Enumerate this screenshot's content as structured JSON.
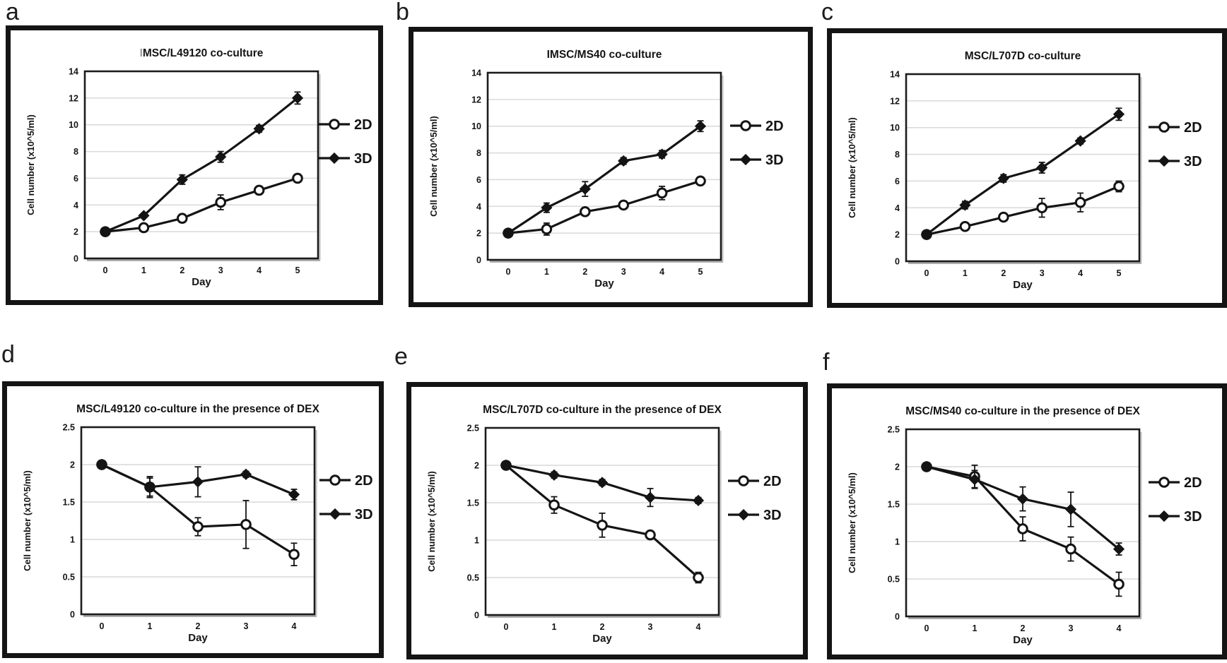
{
  "figure": {
    "colors": {
      "line": "#141414",
      "grid": "#d9d9d9",
      "plot_border": "#1c1c1c",
      "plot_shadow": "#a6a6a6",
      "frame": "#141414",
      "background": "#ffffff",
      "faint_title_prefix": "#9a9a9a"
    },
    "legend_labels": [
      "2D",
      "3D"
    ]
  },
  "chart_data": [
    {
      "panel_label": "a",
      "type": "line",
      "title": "MSC/L49120 co-culture",
      "title_prefix_faint": "I",
      "xlabel": "Day",
      "ylabel": "Cell number (x10^5/ml)",
      "x": [
        0,
        1,
        2,
        3,
        4,
        5
      ],
      "ylim": [
        0,
        14
      ],
      "yticks": [
        0,
        2,
        4,
        6,
        8,
        10,
        12,
        14
      ],
      "ytick_labels": [
        "0",
        "2",
        "4",
        "6",
        "8",
        "10",
        "12",
        "14"
      ],
      "grid": "horizontal",
      "legend_position": "right",
      "series": [
        {
          "name": "2D",
          "marker": "open-circle",
          "values": [
            2.0,
            2.3,
            3.0,
            4.2,
            5.1,
            6.0
          ],
          "errors": [
            0.08,
            0.22,
            0.3,
            0.55,
            0.3,
            0.3
          ]
        },
        {
          "name": "3D",
          "marker": "filled-diamond",
          "values": [
            2.0,
            3.2,
            5.9,
            7.6,
            9.7,
            12.0
          ],
          "errors": [
            0.08,
            0.15,
            0.35,
            0.4,
            0.25,
            0.45
          ]
        }
      ]
    },
    {
      "panel_label": "b",
      "type": "line",
      "title": "IMSC/MS40 co-culture",
      "title_prefix_faint": "",
      "xlabel": "Day",
      "ylabel": "Cell number (x10^5/ml)",
      "x": [
        0,
        1,
        2,
        3,
        4,
        5
      ],
      "ylim": [
        0,
        14
      ],
      "yticks": [
        0,
        2,
        4,
        6,
        8,
        10,
        12,
        14
      ],
      "ytick_labels": [
        "0",
        "2",
        "4",
        "6",
        "8",
        "10",
        "12",
        "14"
      ],
      "grid": "horizontal",
      "legend_position": "right",
      "series": [
        {
          "name": "2D",
          "marker": "open-circle",
          "values": [
            2.0,
            2.3,
            3.6,
            4.1,
            5.0,
            5.9
          ],
          "errors": [
            0.08,
            0.45,
            0.08,
            0.3,
            0.5,
            0.28
          ]
        },
        {
          "name": "3D",
          "marker": "filled-diamond",
          "values": [
            2.0,
            3.9,
            5.3,
            7.4,
            7.9,
            10.0
          ],
          "errors": [
            0.08,
            0.35,
            0.55,
            0.25,
            0.28,
            0.4
          ]
        }
      ]
    },
    {
      "panel_label": "c",
      "type": "line",
      "title": "MSC/L707D co-culture",
      "title_prefix_faint": "",
      "xlabel": "Day",
      "ylabel": "Cell number (x10^5/ml)",
      "x": [
        0,
        1,
        2,
        3,
        4,
        5
      ],
      "ylim": [
        0,
        14
      ],
      "yticks": [
        0,
        2,
        4,
        6,
        8,
        10,
        12,
        14
      ],
      "ytick_labels": [
        "0",
        "2",
        "4",
        "6",
        "8",
        "10",
        "12",
        "14"
      ],
      "grid": "horizontal",
      "legend_position": "right",
      "series": [
        {
          "name": "2D",
          "marker": "open-circle",
          "values": [
            2.0,
            2.6,
            3.3,
            4.0,
            4.4,
            5.6
          ],
          "errors": [
            0.12,
            0.28,
            0.22,
            0.7,
            0.7,
            0.4
          ]
        },
        {
          "name": "3D",
          "marker": "filled-diamond",
          "values": [
            2.0,
            4.2,
            6.2,
            7.0,
            9.0,
            11.0
          ],
          "errors": [
            0.12,
            0.28,
            0.28,
            0.4,
            0.22,
            0.45
          ]
        }
      ]
    },
    {
      "panel_label": "d",
      "type": "line",
      "title": "MSC/L49120 co-culture in the presence of DEX",
      "title_prefix_faint": "",
      "xlabel": "Day",
      "ylabel": "Cell number (x10^5/ml)",
      "x": [
        0,
        1,
        2,
        3,
        4
      ],
      "ylim": [
        0,
        2.5
      ],
      "yticks": [
        0,
        0.5,
        1,
        1.5,
        2,
        2.5
      ],
      "ytick_labels": [
        "0",
        "0.5",
        "1",
        "1.5",
        "2",
        "2.5"
      ],
      "grid": "horizontal",
      "legend_position": "right",
      "series": [
        {
          "name": "2D",
          "marker": "open-circle",
          "values": [
            2.0,
            1.7,
            1.17,
            1.2,
            0.8
          ],
          "errors": [
            0.02,
            0.14,
            0.12,
            0.32,
            0.15
          ]
        },
        {
          "name": "3D",
          "marker": "filled-diamond",
          "values": [
            2.0,
            1.7,
            1.77,
            1.87,
            1.6
          ],
          "errors": [
            0.02,
            0.12,
            0.2,
            0.04,
            0.07
          ]
        }
      ]
    },
    {
      "panel_label": "e",
      "type": "line",
      "title": "MSC/L707D co-culture in the presence of DEX",
      "title_prefix_faint": "",
      "xlabel": "Day",
      "ylabel": "Cell number (x10^5/ml)",
      "x": [
        0,
        1,
        2,
        3,
        4
      ],
      "ylim": [
        0,
        2.5
      ],
      "yticks": [
        0,
        0.5,
        1,
        1.5,
        2,
        2.5
      ],
      "ytick_labels": [
        "0",
        "0.5",
        "1",
        "1.5",
        "2",
        "2.5"
      ],
      "grid": "horizontal",
      "legend_position": "right",
      "series": [
        {
          "name": "2D",
          "marker": "open-circle",
          "values": [
            2.0,
            1.47,
            1.2,
            1.07,
            0.5
          ],
          "errors": [
            0.02,
            0.11,
            0.16,
            0.04,
            0.07
          ]
        },
        {
          "name": "3D",
          "marker": "filled-diamond",
          "values": [
            2.0,
            1.87,
            1.77,
            1.57,
            1.53
          ],
          "errors": [
            0.02,
            0.04,
            0.04,
            0.12,
            0.04
          ]
        }
      ]
    },
    {
      "panel_label": "f",
      "type": "line",
      "title": "MSC/MS40 co-culture in the presence of DEX",
      "title_prefix_faint": "",
      "xlabel": "Day",
      "ylabel": "Cell number (x10^5/ml)",
      "x": [
        0,
        1,
        2,
        3,
        4
      ],
      "ylim": [
        0,
        2.5
      ],
      "yticks": [
        0,
        0.5,
        1,
        1.5,
        2,
        2.5
      ],
      "ytick_labels": [
        "0",
        "0.5",
        "1",
        "1.5",
        "2",
        "2.5"
      ],
      "grid": "horizontal",
      "legend_position": "right",
      "series": [
        {
          "name": "2D",
          "marker": "open-circle",
          "values": [
            2.0,
            1.87,
            1.17,
            0.9,
            0.43
          ],
          "errors": [
            0.03,
            0.15,
            0.16,
            0.16,
            0.16
          ]
        },
        {
          "name": "3D",
          "marker": "filled-diamond",
          "values": [
            2.0,
            1.83,
            1.57,
            1.43,
            0.9
          ],
          "errors": [
            0.03,
            0.12,
            0.16,
            0.23,
            0.08
          ]
        }
      ]
    }
  ]
}
